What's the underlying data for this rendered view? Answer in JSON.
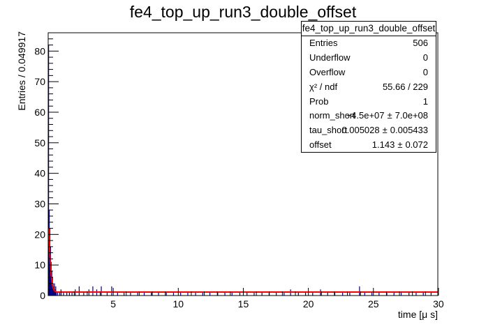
{
  "chart_data": {
    "type": "bar",
    "title": "fe4_top_up_run3_double_offset",
    "xlabel": "time [μ s]",
    "ylabel": "Entries / 0.049917",
    "xlim": [
      0.0,
      29.95
    ],
    "ylim": [
      0,
      86
    ],
    "x_ticks": [
      5,
      10,
      15,
      20,
      25,
      30
    ],
    "y_ticks": [
      0,
      10,
      20,
      30,
      40,
      50,
      60,
      70,
      80
    ],
    "bin_width": 0.049917,
    "histogram": {
      "color": "#000080",
      "bins": [
        {
          "x": 0.025,
          "y": 82
        },
        {
          "x": 0.075,
          "y": 28
        },
        {
          "x": 0.125,
          "y": 22
        },
        {
          "x": 0.175,
          "y": 16
        },
        {
          "x": 0.225,
          "y": 11
        },
        {
          "x": 0.275,
          "y": 8
        },
        {
          "x": 0.325,
          "y": 6
        },
        {
          "x": 0.375,
          "y": 4
        },
        {
          "x": 0.425,
          "y": 3
        },
        {
          "x": 0.475,
          "y": 4
        },
        {
          "x": 0.525,
          "y": 2
        },
        {
          "x": 0.575,
          "y": 3
        },
        {
          "x": 0.625,
          "y": 1
        },
        {
          "x": 0.725,
          "y": 1
        },
        {
          "x": 0.875,
          "y": 1
        },
        {
          "x": 0.975,
          "y": 2
        },
        {
          "x": 1.175,
          "y": 1
        },
        {
          "x": 1.425,
          "y": 1
        },
        {
          "x": 1.625,
          "y": 1
        },
        {
          "x": 1.825,
          "y": 1
        },
        {
          "x": 2.075,
          "y": 2
        },
        {
          "x": 2.375,
          "y": 3
        },
        {
          "x": 2.725,
          "y": 1
        },
        {
          "x": 3.125,
          "y": 2
        },
        {
          "x": 3.425,
          "y": 3
        },
        {
          "x": 3.725,
          "y": 2
        },
        {
          "x": 4.075,
          "y": 3
        },
        {
          "x": 4.525,
          "y": 1
        },
        {
          "x": 4.875,
          "y": 3
        },
        {
          "x": 5.325,
          "y": 1
        },
        {
          "x": 5.825,
          "y": 1
        },
        {
          "x": 6.325,
          "y": 1
        },
        {
          "x": 6.875,
          "y": 1
        },
        {
          "x": 7.375,
          "y": 1
        },
        {
          "x": 7.925,
          "y": 1
        },
        {
          "x": 8.475,
          "y": 1
        },
        {
          "x": 9.075,
          "y": 1
        },
        {
          "x": 9.625,
          "y": 1
        },
        {
          "x": 10.175,
          "y": 1
        },
        {
          "x": 10.725,
          "y": 1
        },
        {
          "x": 11.325,
          "y": 1
        },
        {
          "x": 11.875,
          "y": 1
        },
        {
          "x": 12.425,
          "y": 1
        },
        {
          "x": 13.025,
          "y": 1
        },
        {
          "x": 13.575,
          "y": 1
        },
        {
          "x": 14.125,
          "y": 1
        },
        {
          "x": 14.725,
          "y": 1
        },
        {
          "x": 15.275,
          "y": 1
        },
        {
          "x": 15.825,
          "y": 1
        },
        {
          "x": 16.425,
          "y": 1
        },
        {
          "x": 16.975,
          "y": 1
        },
        {
          "x": 17.525,
          "y": 1
        },
        {
          "x": 18.125,
          "y": 1
        },
        {
          "x": 18.625,
          "y": 2
        },
        {
          "x": 19.225,
          "y": 1
        },
        {
          "x": 19.775,
          "y": 1
        },
        {
          "x": 20.325,
          "y": 1
        },
        {
          "x": 20.925,
          "y": 2
        },
        {
          "x": 21.475,
          "y": 1
        },
        {
          "x": 22.025,
          "y": 1
        },
        {
          "x": 22.625,
          "y": 1
        },
        {
          "x": 23.175,
          "y": 1
        },
        {
          "x": 23.925,
          "y": 3
        },
        {
          "x": 24.325,
          "y": 1
        },
        {
          "x": 24.875,
          "y": 1
        },
        {
          "x": 25.425,
          "y": 1
        },
        {
          "x": 26.025,
          "y": 1
        },
        {
          "x": 26.575,
          "y": 1
        },
        {
          "x": 27.125,
          "y": 1
        },
        {
          "x": 27.725,
          "y": 1
        },
        {
          "x": 28.275,
          "y": 1
        },
        {
          "x": 28.825,
          "y": 1
        },
        {
          "x": 29.425,
          "y": 1
        }
      ]
    },
    "fit": {
      "color": "#ff0000",
      "points": [
        {
          "x": 0.05,
          "y": 22
        },
        {
          "x": 0.1,
          "y": 16
        },
        {
          "x": 0.15,
          "y": 11.5
        },
        {
          "x": 0.2,
          "y": 8.2
        },
        {
          "x": 0.25,
          "y": 5.8
        },
        {
          "x": 0.3,
          "y": 4.2
        },
        {
          "x": 0.35,
          "y": 3.1
        },
        {
          "x": 0.4,
          "y": 2.3
        },
        {
          "x": 0.45,
          "y": 1.8
        },
        {
          "x": 0.5,
          "y": 1.5
        },
        {
          "x": 0.6,
          "y": 1.25
        },
        {
          "x": 0.7,
          "y": 1.17
        },
        {
          "x": 0.8,
          "y": 1.15
        },
        {
          "x": 1.0,
          "y": 1.143
        },
        {
          "x": 29.95,
          "y": 1.143
        }
      ]
    }
  },
  "stats_box": {
    "title": "fe4_top_up_run3_double_offset",
    "rows": [
      {
        "label": "Entries",
        "value": "506"
      },
      {
        "label": "Underflow",
        "value": "0"
      },
      {
        "label": "Overflow",
        "value": "0"
      },
      {
        "label": "χ² / ndf",
        "value": "55.66 / 229"
      },
      {
        "label": "Prob",
        "value": "1"
      },
      {
        "label": "norm_short",
        "value": "−4.5e+07",
        "pm": "±",
        "err": "7.0e+08"
      },
      {
        "label": "tau_short",
        "value": "0.005028",
        "pm": "±",
        "err": "0.005433"
      },
      {
        "label": "offset",
        "value": "1.143",
        "pm": "±",
        "err": "0.072"
      }
    ]
  }
}
